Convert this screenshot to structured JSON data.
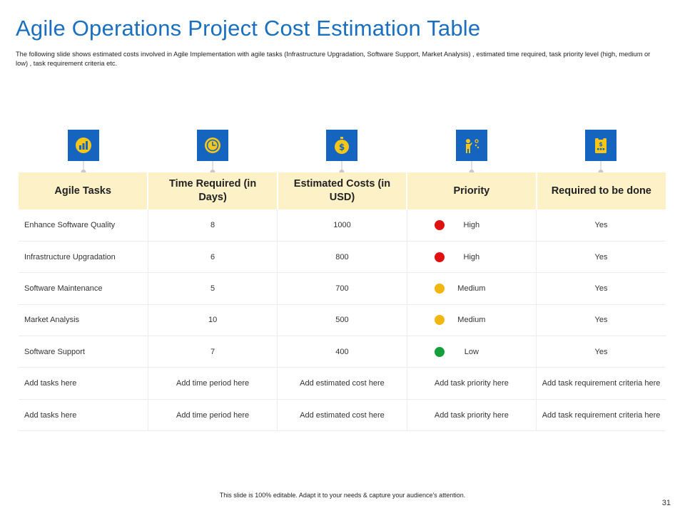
{
  "slide": {
    "title": "Agile Operations Project Cost Estimation Table",
    "subtitle": "The following slide shows estimated costs involved in Agile Implementation with agile tasks (Infrastructure Upgradation, Software Support, Market Analysis) , estimated time required, task priority level (high, medium or low) , task requirement criteria etc.",
    "footer": "This slide is 100% editable. Adapt it to your needs & capture your audience's attention.",
    "page_number": "31"
  },
  "colors": {
    "title": "#1a6fbf",
    "icon_bg": "#1565c0",
    "icon_fg": "#f5c518",
    "header_bg": "#fdf1c8",
    "high": "#e01010",
    "medium": "#f2b70f",
    "low": "#13a03a"
  },
  "icons": [
    {
      "name": "tasks-icon"
    },
    {
      "name": "clock-icon"
    },
    {
      "name": "dollar-coin-icon"
    },
    {
      "name": "presenter-icon"
    },
    {
      "name": "clipboard-icon"
    }
  ],
  "table": {
    "headers": [
      "Agile Tasks",
      "Time Required (in Days)",
      "Estimated Costs  (in USD)",
      "Priority",
      "Required to be done"
    ],
    "rows": [
      {
        "task": "Enhance  Software Quality",
        "time": "8",
        "cost": "1000",
        "priority": "High",
        "priority_level": "high",
        "required": "Yes"
      },
      {
        "task": "Infrastructure Upgradation",
        "time": "6",
        "cost": "800",
        "priority": "High",
        "priority_level": "high",
        "required": "Yes"
      },
      {
        "task": "Software Maintenance",
        "time": "5",
        "cost": "700",
        "priority": "Medium",
        "priority_level": "medium",
        "required": "Yes"
      },
      {
        "task": "Market Analysis",
        "time": "10",
        "cost": "500",
        "priority": "Medium",
        "priority_level": "medium",
        "required": "Yes"
      },
      {
        "task": "Software Support",
        "time": "7",
        "cost": "400",
        "priority": "Low",
        "priority_level": "low",
        "required": "Yes"
      },
      {
        "task": "Add tasks here",
        "time": "Add time period here",
        "cost": "Add estimated cost here",
        "priority": "Add task priority here",
        "priority_level": "",
        "required": "Add task requirement criteria here"
      },
      {
        "task": "Add tasks here",
        "time": "Add time period here",
        "cost": "Add estimated cost here",
        "priority": "Add task priority here",
        "priority_level": "",
        "required": "Add task requirement criteria here"
      }
    ]
  }
}
